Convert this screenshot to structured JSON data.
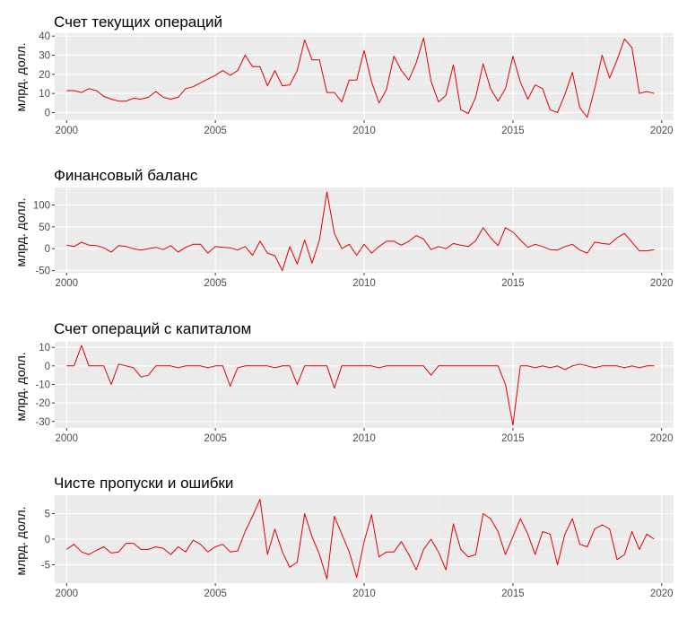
{
  "colors": {
    "panel_bg": "#EBEBEB",
    "grid_major": "#FFFFFF",
    "grid_minor": "#F4F4F4",
    "line": "#E00000",
    "tick_text": "#4D4D4D"
  },
  "chart_data": [
    {
      "type": "line",
      "title": "Счет текущих операций",
      "ylabel": "млрд. долл.",
      "xlabel": "",
      "xlim": [
        1999.6,
        2020.4
      ],
      "ylim": [
        -4,
        41.5
      ],
      "xticks": [
        2000,
        2005,
        2010,
        2015,
        2020
      ],
      "xtick_labels": [
        "2000",
        "2005",
        "2010",
        "2015",
        "2020"
      ],
      "yticks": [
        0,
        10,
        20,
        30,
        40
      ],
      "ytick_labels": [
        "0",
        "10",
        "20",
        "30",
        "40"
      ],
      "grid": true,
      "x": [
        2000.0,
        2000.25,
        2000.5,
        2000.75,
        2001.0,
        2001.25,
        2001.5,
        2001.75,
        2002.0,
        2002.25,
        2002.5,
        2002.75,
        2003.0,
        2003.25,
        2003.5,
        2003.75,
        2004.0,
        2004.25,
        2004.5,
        2004.75,
        2005.0,
        2005.25,
        2005.5,
        2005.75,
        2006.0,
        2006.25,
        2006.5,
        2006.75,
        2007.0,
        2007.25,
        2007.5,
        2007.75,
        2008.0,
        2008.25,
        2008.5,
        2008.75,
        2009.0,
        2009.25,
        2009.5,
        2009.75,
        2010.0,
        2010.25,
        2010.5,
        2010.75,
        2011.0,
        2011.25,
        2011.5,
        2011.75,
        2012.0,
        2012.25,
        2012.5,
        2012.75,
        2013.0,
        2013.25,
        2013.5,
        2013.75,
        2014.0,
        2014.25,
        2014.5,
        2014.75,
        2015.0,
        2015.25,
        2015.5,
        2015.75,
        2016.0,
        2016.25,
        2016.5,
        2016.75,
        2017.0,
        2017.25,
        2017.5,
        2017.75,
        2018.0,
        2018.25,
        2018.5,
        2018.75,
        2019.0,
        2019.25,
        2019.5,
        2019.75
      ],
      "values": [
        11.5,
        11.5,
        10.5,
        12.5,
        11.5,
        8.5,
        7,
        6,
        6,
        7.5,
        7,
        8,
        11,
        8,
        7,
        8,
        12.5,
        13.5,
        15.5,
        17.5,
        19.5,
        22,
        19.5,
        22,
        30,
        24,
        24,
        14,
        22,
        14,
        14.5,
        22,
        38,
        27.5,
        27.5,
        10.5,
        10.5,
        5.5,
        17,
        17,
        32.5,
        16,
        5,
        12,
        29.5,
        22,
        17,
        26,
        39,
        16.5,
        5.5,
        9,
        25,
        1.5,
        -0.5,
        8,
        25.5,
        12.5,
        6,
        12.5,
        29.5,
        16,
        7,
        14.5,
        12.5,
        1.5,
        0,
        9.5,
        21,
        2.5,
        -2.5,
        12.5,
        30,
        18,
        27.5,
        38.5,
        34,
        10,
        11,
        10
      ]
    },
    {
      "type": "line",
      "title": "Финансовый баланс",
      "ylabel": "млрд. долл.",
      "xlabel": "",
      "xlim": [
        1999.6,
        2020.4
      ],
      "ylim": [
        -55,
        140
      ],
      "xticks": [
        2000,
        2005,
        2010,
        2015,
        2020
      ],
      "xtick_labels": [
        "2000",
        "2005",
        "2010",
        "2015",
        "2020"
      ],
      "yticks": [
        -50,
        0,
        50,
        100
      ],
      "ytick_labels": [
        "-50",
        "0",
        "50",
        "100"
      ],
      "grid": true,
      "x": [
        2000.0,
        2000.25,
        2000.5,
        2000.75,
        2001.0,
        2001.25,
        2001.5,
        2001.75,
        2002.0,
        2002.25,
        2002.5,
        2002.75,
        2003.0,
        2003.25,
        2003.5,
        2003.75,
        2004.0,
        2004.25,
        2004.5,
        2004.75,
        2005.0,
        2005.25,
        2005.5,
        2005.75,
        2006.0,
        2006.25,
        2006.5,
        2006.75,
        2007.0,
        2007.25,
        2007.5,
        2007.75,
        2008.0,
        2008.25,
        2008.5,
        2008.75,
        2009.0,
        2009.25,
        2009.5,
        2009.75,
        2010.0,
        2010.25,
        2010.5,
        2010.75,
        2011.0,
        2011.25,
        2011.5,
        2011.75,
        2012.0,
        2012.25,
        2012.5,
        2012.75,
        2013.0,
        2013.25,
        2013.5,
        2013.75,
        2014.0,
        2014.25,
        2014.5,
        2014.75,
        2015.0,
        2015.25,
        2015.5,
        2015.75,
        2016.0,
        2016.25,
        2016.5,
        2016.75,
        2017.0,
        2017.25,
        2017.5,
        2017.75,
        2018.0,
        2018.25,
        2018.5,
        2018.75,
        2019.0,
        2019.25,
        2019.5,
        2019.75
      ],
      "values": [
        8,
        5,
        15,
        8,
        7,
        2,
        -8,
        7,
        5,
        0,
        -3,
        0,
        3,
        -2,
        7,
        -8,
        3,
        10,
        10,
        -10,
        5,
        3,
        2,
        -3,
        5,
        -15,
        17,
        -10,
        -16,
        -50,
        5,
        -35,
        20,
        -33,
        20,
        130,
        35,
        0,
        10,
        -15,
        10,
        -10,
        5,
        17,
        17,
        8,
        17,
        30,
        22,
        -2,
        5,
        0,
        12,
        8,
        5,
        18,
        48,
        25,
        7,
        48,
        38,
        20,
        3,
        10,
        5,
        -2,
        -3,
        5,
        10,
        -3,
        -10,
        15,
        12,
        10,
        25,
        35,
        15,
        -5,
        -5,
        -2
      ]
    },
    {
      "type": "line",
      "title": "Счет операций с капиталом",
      "ylabel": "млрд. долл.",
      "xlabel": "",
      "xlim": [
        1999.6,
        2020.4
      ],
      "ylim": [
        -33.5,
        13
      ],
      "xticks": [
        2000,
        2005,
        2010,
        2015,
        2020
      ],
      "xtick_labels": [
        "2000",
        "2005",
        "2010",
        "2015",
        "2020"
      ],
      "yticks": [
        -30,
        -20,
        -10,
        0,
        10
      ],
      "ytick_labels": [
        "-30",
        "-20",
        "-10",
        "0",
        "10"
      ],
      "grid": true,
      "x": [
        2000.0,
        2000.25,
        2000.5,
        2000.75,
        2001.0,
        2001.25,
        2001.5,
        2001.75,
        2002.0,
        2002.25,
        2002.5,
        2002.75,
        2003.0,
        2003.25,
        2003.5,
        2003.75,
        2004.0,
        2004.25,
        2004.5,
        2004.75,
        2005.0,
        2005.25,
        2005.5,
        2005.75,
        2006.0,
        2006.25,
        2006.5,
        2006.75,
        2007.0,
        2007.25,
        2007.5,
        2007.75,
        2008.0,
        2008.25,
        2008.5,
        2008.75,
        2009.0,
        2009.25,
        2009.5,
        2009.75,
        2010.0,
        2010.25,
        2010.5,
        2010.75,
        2011.0,
        2011.25,
        2011.5,
        2011.75,
        2012.0,
        2012.25,
        2012.5,
        2012.75,
        2013.0,
        2013.25,
        2013.5,
        2013.75,
        2014.0,
        2014.25,
        2014.5,
        2014.75,
        2015.0,
        2015.25,
        2015.5,
        2015.75,
        2016.0,
        2016.25,
        2016.5,
        2016.75,
        2017.0,
        2017.25,
        2017.5,
        2017.75,
        2018.0,
        2018.25,
        2018.5,
        2018.75,
        2019.0,
        2019.25,
        2019.5,
        2019.75
      ],
      "values": [
        0,
        0,
        11,
        0,
        0,
        0,
        -10,
        1,
        0,
        -1,
        -6,
        -5,
        0,
        0,
        0,
        -1,
        0,
        0,
        0,
        -1,
        0,
        0,
        -11,
        -1,
        0,
        0,
        0,
        0,
        -1,
        0,
        0,
        -10,
        0,
        0,
        0,
        0,
        -12,
        0,
        0,
        0,
        0,
        0,
        -1,
        0,
        0,
        0,
        0,
        0,
        0,
        -5,
        0,
        0,
        0,
        0,
        0,
        0,
        0,
        0,
        0,
        -10,
        -32,
        0,
        0,
        -1,
        0,
        -1,
        0,
        -2,
        0,
        1,
        0,
        -1,
        0,
        0,
        0,
        -1,
        0,
        -1,
        0,
        0
      ]
    },
    {
      "type": "line",
      "title": "Чисте пропуски и ошибки",
      "ylabel": "млрд. долл.",
      "xlabel": "",
      "xlim": [
        1999.6,
        2020.4
      ],
      "ylim": [
        -8.6,
        8.6
      ],
      "xticks": [
        2000,
        2005,
        2010,
        2015,
        2020
      ],
      "xtick_labels": [
        "2000",
        "2005",
        "2010",
        "2015",
        "2020"
      ],
      "yticks": [
        -5,
        0,
        5
      ],
      "ytick_labels": [
        "-5",
        "0",
        "5"
      ],
      "grid": true,
      "x": [
        2000.0,
        2000.25,
        2000.5,
        2000.75,
        2001.0,
        2001.25,
        2001.5,
        2001.75,
        2002.0,
        2002.25,
        2002.5,
        2002.75,
        2003.0,
        2003.25,
        2003.5,
        2003.75,
        2004.0,
        2004.25,
        2004.5,
        2004.75,
        2005.0,
        2005.25,
        2005.5,
        2005.75,
        2006.0,
        2006.25,
        2006.5,
        2006.75,
        2007.0,
        2007.25,
        2007.5,
        2007.75,
        2008.0,
        2008.25,
        2008.5,
        2008.75,
        2009.0,
        2009.25,
        2009.5,
        2009.75,
        2010.0,
        2010.25,
        2010.5,
        2010.75,
        2011.0,
        2011.25,
        2011.5,
        2011.75,
        2012.0,
        2012.25,
        2012.5,
        2012.75,
        2013.0,
        2013.25,
        2013.5,
        2013.75,
        2014.0,
        2014.25,
        2014.5,
        2014.75,
        2015.0,
        2015.25,
        2015.5,
        2015.75,
        2016.0,
        2016.25,
        2016.5,
        2016.75,
        2017.0,
        2017.25,
        2017.5,
        2017.75,
        2018.0,
        2018.25,
        2018.5,
        2018.75,
        2019.0,
        2019.25,
        2019.5,
        2019.75
      ],
      "values": [
        -2,
        -1,
        -2.5,
        -3,
        -2.2,
        -1.5,
        -2.7,
        -2.5,
        -0.8,
        -0.8,
        -2,
        -2,
        -1.5,
        -1.8,
        -3,
        -1.5,
        -2.5,
        -0.2,
        -1,
        -2.5,
        -1.5,
        -1,
        -2.5,
        -2.3,
        1.5,
        4.5,
        7.8,
        -3,
        2,
        -2.5,
        -5.5,
        -4.5,
        5,
        0.5,
        -3,
        -7.8,
        4.5,
        1,
        -2.5,
        -7.5,
        -0.5,
        4.8,
        -3.5,
        -2.5,
        -2.5,
        -0.5,
        -3,
        -6,
        -2,
        0,
        -2.5,
        -6,
        3,
        -2,
        -3.5,
        -3,
        5,
        4,
        1.5,
        -3,
        0.5,
        4,
        1,
        -3,
        1.5,
        1,
        -5,
        1,
        4,
        -1,
        -1.5,
        2,
        2.8,
        2,
        -4,
        -3,
        1.5,
        -2,
        1,
        0
      ]
    }
  ]
}
